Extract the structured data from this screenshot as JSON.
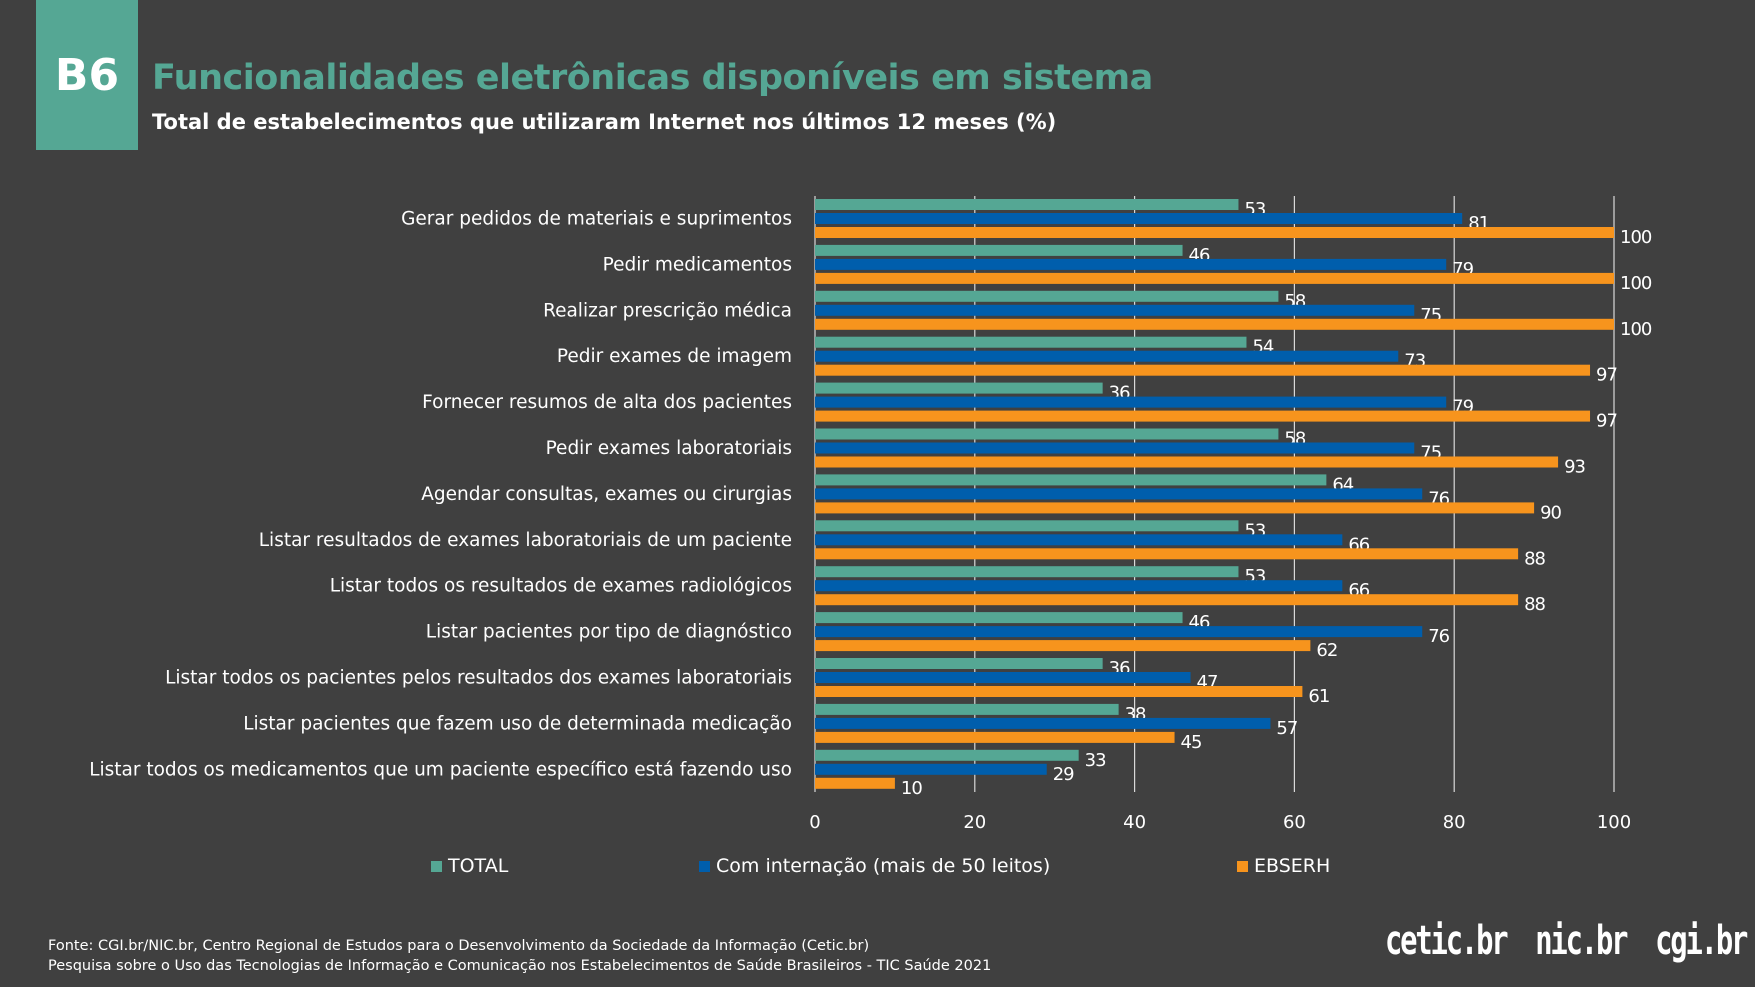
{
  "badge": "B6",
  "title": "Funcionalidades eletrônicas disponíveis em sistema",
  "subtitle": "Total de estabelecimentos que utilizaram Internet nos últimos 12 meses (%)",
  "chart_data": {
    "type": "bar",
    "orientation": "horizontal",
    "categories": [
      "Gerar pedidos de materiais e suprimentos",
      "Pedir medicamentos",
      "Realizar prescrição médica",
      "Pedir exames de imagem",
      "Fornecer resumos de alta dos pacientes",
      "Pedir exames laboratoriais",
      "Agendar consultas, exames ou cirurgias",
      "Listar resultados de exames laboratoriais de um paciente",
      "Listar todos os resultados de exames radiológicos",
      "Listar pacientes por tipo de diagnóstico",
      "Listar todos os pacientes pelos resultados dos exames laboratoriais",
      "Listar pacientes que fazem uso de determinada medicação",
      "Listar todos os medicamentos que um paciente específico está fazendo uso"
    ],
    "series": [
      {
        "name": "TOTAL",
        "color": "#55a794",
        "values": [
          53,
          46,
          58,
          54,
          36,
          58,
          64,
          53,
          53,
          46,
          36,
          38,
          33
        ]
      },
      {
        "name": "Com internação (mais de 50 leitos)",
        "color": "#005eac",
        "values": [
          81,
          79,
          75,
          73,
          79,
          75,
          76,
          66,
          66,
          76,
          47,
          57,
          29
        ]
      },
      {
        "name": "EBSERH",
        "color": "#f7941d",
        "values": [
          100,
          100,
          100,
          97,
          97,
          93,
          90,
          88,
          88,
          62,
          61,
          45,
          10
        ]
      }
    ],
    "xlim": [
      0,
      100
    ],
    "xticks": [
      0,
      20,
      40,
      60,
      80,
      100
    ],
    "grid": "vertical",
    "legend": "bottom",
    "data_labels": true
  },
  "footer": {
    "line1": "Fonte: CGI.br/NIC.br, Centro Regional de Estudos para o Desenvolvimento da Sociedade da Informação (Cetic.br)",
    "line2": "Pesquisa sobre o Uso das Tecnologias de Informação e Comunicação nos Estabelecimentos de Saúde Brasileiros - TIC Saúde 2021"
  },
  "logos": [
    "cetic.br",
    "nic.br",
    "cgi.br"
  ]
}
